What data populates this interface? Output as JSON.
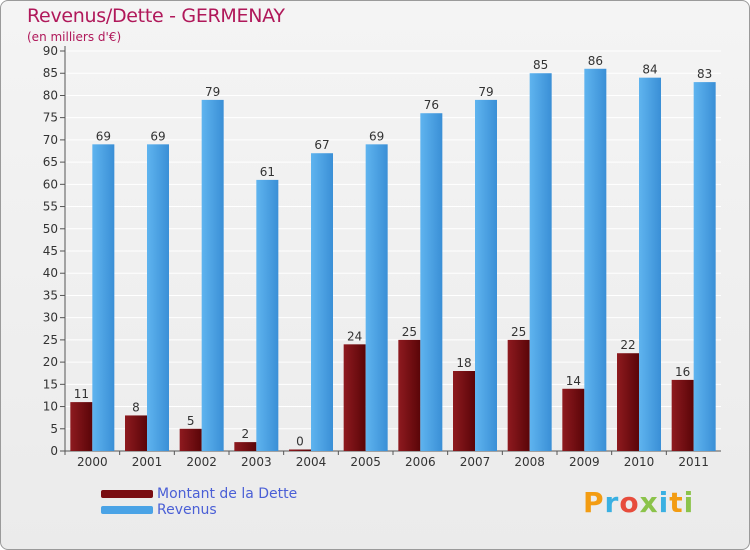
{
  "chart_data": {
    "type": "bar",
    "title": "Revenus/Dette - GERMENAY",
    "subtitle": "(en milliers d'€)",
    "categories": [
      "2000",
      "2001",
      "2002",
      "2003",
      "2004",
      "2005",
      "2006",
      "2007",
      "2008",
      "2009",
      "2010",
      "2011"
    ],
    "series": [
      {
        "name": "Montant de la Dette",
        "color": "#7a0d12",
        "values": [
          11,
          8,
          5,
          2,
          0,
          24,
          25,
          18,
          25,
          14,
          22,
          16
        ]
      },
      {
        "name": "Revenus",
        "color": "#4aa3e6",
        "values": [
          69,
          69,
          79,
          61,
          67,
          69,
          76,
          79,
          85,
          86,
          84,
          83
        ]
      }
    ],
    "ylim": [
      0,
      90
    ],
    "ytick_step": 5,
    "grid": true,
    "legend_position": "bottom-left"
  },
  "brand": {
    "text": "Proxiti",
    "colors": [
      "#f39c12",
      "#3ab0e2",
      "#e74c3c",
      "#8bc34a",
      "#3ab0e2",
      "#f39c12",
      "#8bc34a"
    ]
  }
}
